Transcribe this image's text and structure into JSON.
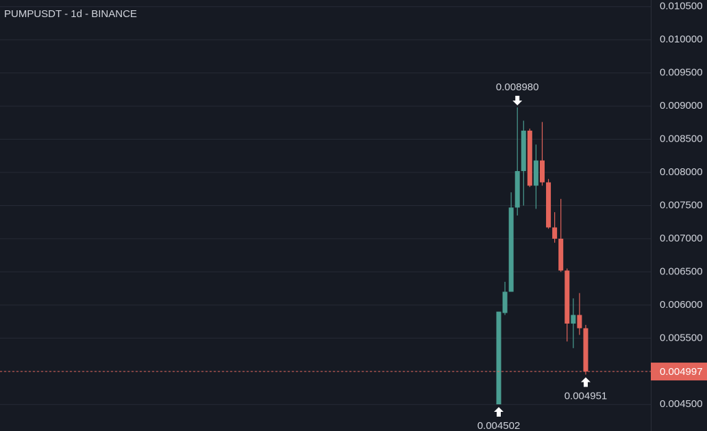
{
  "chart_data": {
    "type": "candlestick",
    "title": "PUMPUSDT - 1d - BINANCE",
    "categories": [
      null,
      null,
      null,
      null,
      null,
      null,
      null,
      null,
      null,
      null,
      null,
      null,
      null,
      null,
      null
    ],
    "open": [
      0.004502,
      0.00588,
      0.0062,
      0.00747,
      0.00802,
      0.00863,
      0.0078,
      0.00818,
      0.00785,
      0.00717,
      0.007,
      0.00652,
      0.00572,
      0.00585,
      0.00565
    ],
    "high": [
      0.0059,
      0.00635,
      0.0077,
      0.00898,
      0.00878,
      0.00866,
      0.00842,
      0.00876,
      0.0079,
      0.0074,
      0.0076,
      0.00655,
      0.0061,
      0.00618,
      0.0057
    ],
    "low": [
      0.004502,
      0.00585,
      0.0062,
      0.00735,
      0.0075,
      0.00778,
      0.00745,
      0.0078,
      0.00715,
      0.00694,
      0.0065,
      0.00545,
      0.00535,
      0.00555,
      0.004951
    ],
    "close": [
      0.0059,
      0.0062,
      0.00747,
      0.00802,
      0.00863,
      0.0078,
      0.00818,
      0.00785,
      0.00717,
      0.007,
      0.00652,
      0.00572,
      0.00585,
      0.00565,
      0.004997
    ],
    "up_color": "#4a9e92",
    "down_color": "#e4655b",
    "ylim": [
      0.0041,
      0.0106
    ],
    "yticks": [
      {
        "value": 0.0045,
        "label": "0.004500"
      },
      {
        "value": 0.005,
        "label": "0.005000"
      },
      {
        "value": 0.0055,
        "label": "0.005500"
      },
      {
        "value": 0.006,
        "label": "0.006000"
      },
      {
        "value": 0.0065,
        "label": "0.006500"
      },
      {
        "value": 0.007,
        "label": "0.007000"
      },
      {
        "value": 0.0075,
        "label": "0.007500"
      },
      {
        "value": 0.008,
        "label": "0.008000"
      },
      {
        "value": 0.0085,
        "label": "0.008500"
      },
      {
        "value": 0.009,
        "label": "0.009000"
      },
      {
        "value": 0.0095,
        "label": "0.009500"
      },
      {
        "value": 0.01,
        "label": "0.010000"
      },
      {
        "value": 0.0105,
        "label": "0.010500"
      }
    ],
    "hidden_ytick": 1,
    "grid": true,
    "high_marker": {
      "value": 0.00898,
      "label": "0.008980"
    },
    "low_marker": {
      "value": 0.004502,
      "label": "0.004502"
    },
    "last_low_marker": {
      "value": 0.004951,
      "label": "0.004951"
    },
    "last_price": {
      "value": 0.004997,
      "label": "0.004997"
    }
  }
}
